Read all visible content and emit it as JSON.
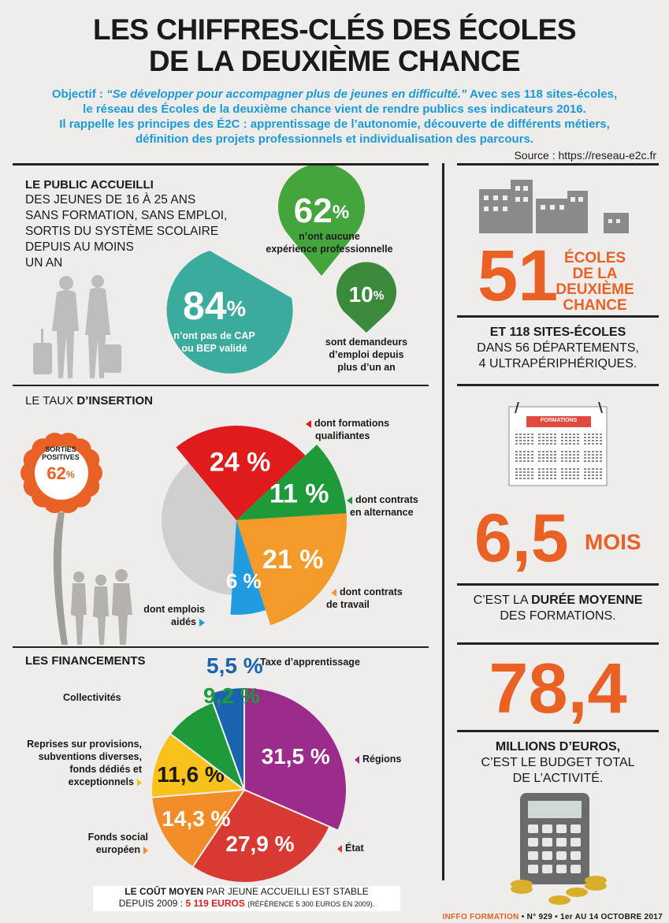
{
  "title": {
    "line1": "LES CHIFFRES-CLÉS DES ÉCOLES",
    "line2": "DE LA DEUXIÈME CHANCE"
  },
  "intro": {
    "label": "Objectif :",
    "quote": "“Se développer pour accompagner plus de jeunes en difficulté.”",
    "rest1": "Avec ses 118 sites-écoles,",
    "line2": "le réseau des Écoles de la deuxième chance vient de rendre publics ses indicateurs 2016.",
    "line3": "Il rappelle les principes des É2C : apprentissage de l’autonomie, découverte de différents métiers,",
    "line4": "définition des projets professionnels et individualisation des parcours."
  },
  "source": "Source : https://reseau-e2c.fr",
  "public": {
    "heading": "LE PUBLIC ACCUEILLI",
    "body": [
      "DES JEUNES DE 16 À 25 ANS",
      "SANS FORMATION, SANS EMPLOI,",
      "SORTIS DU SYSTÈME SCOLAIRE",
      "DEPUIS AU MOINS",
      "UN AN"
    ],
    "stats": [
      {
        "value": "62",
        "unit": "%",
        "label": [
          "n’ont aucune",
          "expérience professionnelle"
        ],
        "color": "#43a53b"
      },
      {
        "value": "84",
        "unit": "%",
        "label": [
          "n’ont pas de CAP",
          "ou BEP validé"
        ],
        "color": "#3aab9c"
      },
      {
        "value": "10",
        "unit": "%",
        "label": [
          "sont demandeurs",
          "d’emploi depuis",
          "plus d’un an"
        ],
        "color": "#3b8a3c"
      }
    ]
  },
  "insertion": {
    "heading_a": "LE TAUX ",
    "heading_b": "D’INSERTION",
    "badge_label": [
      "SORTIES",
      "POSITIVES"
    ],
    "badge_value": "62",
    "badge_unit": "%",
    "slices": [
      {
        "value": 24,
        "label": [
          "dont formations",
          "qualifiantes"
        ],
        "color": "#e01b1b"
      },
      {
        "value": 11,
        "label": [
          "dont contrats",
          "en alternance"
        ],
        "color": "#1e9a3b"
      },
      {
        "value": 21,
        "label": [
          "dont contrats",
          "de travail"
        ],
        "color": "#f39a2b"
      },
      {
        "value": 6,
        "label": [
          "dont emplois",
          "aidés"
        ],
        "color": "#1f9be0"
      }
    ],
    "remainder_color": "#cfcfcf"
  },
  "financement": {
    "heading": "LES FINANCEMENTS",
    "slices": [
      {
        "value": "31,5",
        "label": [
          "Régions"
        ],
        "color": "#9b2c8c"
      },
      {
        "value": "27,9",
        "label": [
          "État"
        ],
        "color": "#d83a33"
      },
      {
        "value": "14,3",
        "label": [
          "Fonds social",
          "européen"
        ],
        "color": "#f28c28"
      },
      {
        "value": "11,6",
        "label": [
          "Reprises sur provisions,",
          "subventions diverses,",
          "fonds dédiés et",
          "exceptionnels"
        ],
        "color": "#f9c21a"
      },
      {
        "value": "9,2",
        "label": [
          "Collectivités"
        ],
        "color": "#1f9a3b"
      },
      {
        "value": "5,5",
        "label": [
          "Taxe d’apprentissage"
        ],
        "color": "#1a63ad"
      }
    ],
    "unit": "%"
  },
  "cout": {
    "bold": "LE COÛT MOYEN",
    "text1": " PAR JEUNE ACCUEILLI EST STABLE",
    "text2": "DEPUIS 2009 : ",
    "amount": "5 119 EUROS",
    "ref": "(RÉFÉRENCE 5 300 EUROS EN 2009)."
  },
  "right": {
    "ecoles_num": "51",
    "ecoles_label": [
      "ÉCOLES",
      "DE LA",
      "DEUXIÈME",
      "CHANCE"
    ],
    "sites_bold": "ET 118 SITES-ÉCOLES",
    "sites_rest": [
      "DANS 56 DÉPARTEMENTS,",
      "4 ULTRAPÉRIPHÉRIQUES."
    ],
    "calendar_banner": "FORMATIONS",
    "duree_num": "6,5",
    "duree_unit": "MOIS",
    "duree_a": "C’EST LA ",
    "duree_b": "DURÉE MOYENNE",
    "duree_c": "DES FORMATIONS.",
    "budget_num": "78,4",
    "budget_bold": "MILLIONS D’EUROS,",
    "budget_rest": [
      "C’EST LE BUDGET TOTAL",
      "DE L’ACTIVITÉ."
    ]
  },
  "footer": {
    "brand": "INFFO FORMATION",
    "issue": " • N° 929 • 1er AU 14 OCTOBRE 2017"
  },
  "colors": {
    "orange": "#ea6125",
    "blue": "#1b9ad6",
    "text": "#1a1a1a"
  }
}
